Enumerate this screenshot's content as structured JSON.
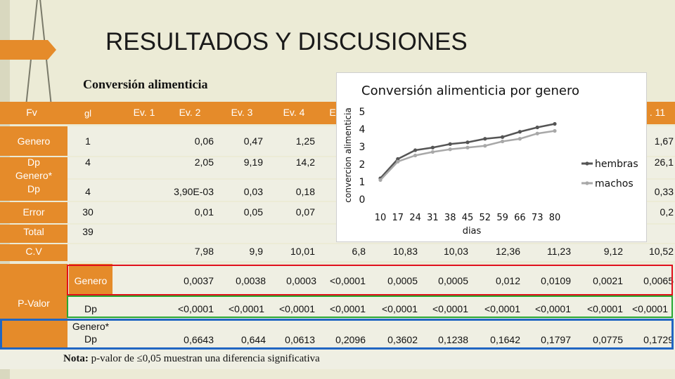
{
  "slide": {
    "title": "RESULTADOS Y DISCUSIONES",
    "subtitle": "Conversión alimenticia",
    "note_bold": "Nota:",
    "note_text": " p-valor de ≤0,05 muestran una diferencia significativa"
  },
  "table": {
    "headers": [
      "Fv",
      "gl",
      "Ev. 1",
      "Ev. 2",
      "Ev. 3",
      "Ev. 4",
      "E",
      ". 11"
    ],
    "rows": [
      {
        "fv": "Genero",
        "gl": "1",
        "ev2": "0,06",
        "ev3": "0,47",
        "ev4": "1,25",
        "ev11": "1,67"
      },
      {
        "fv": "Dp",
        "gl": "4",
        "ev2": "2,05",
        "ev3": "9,19",
        "ev4": "14,2",
        "ev11": "26,1"
      },
      {
        "fv": "Genero*\nDp",
        "gl": "4",
        "ev2": "3,90E-03",
        "ev3": "0,03",
        "ev4": "0,18",
        "ev11": "0,33"
      },
      {
        "fv": "Error",
        "gl": "30",
        "ev2": "0,01",
        "ev3": "0,05",
        "ev4": "0,07",
        "ev11": "0,2"
      },
      {
        "fv": "Total",
        "gl": "39"
      }
    ],
    "cv": {
      "label": "C.V",
      "values": [
        "7,98",
        "9,9",
        "10,01",
        "6,8",
        "10,83",
        "10,03",
        "12,36",
        "11,23",
        "9,12",
        "10,52"
      ]
    },
    "pvalor": {
      "label": "P-Valor",
      "genero": {
        "label": "Genero",
        "values": [
          "0,0037",
          "0,0038",
          "0,0003",
          "<0,0001",
          "0,0005",
          "0,0005",
          "0,012",
          "0,0109",
          "0,0021",
          "0,0065"
        ]
      },
      "dp": {
        "label": "Dp",
        "values": [
          "<0,0001",
          "<0,0001",
          "<0,0001",
          "<0,0001",
          "<0,0001",
          "<0,0001",
          "<0,0001",
          "<0,0001",
          "<0,0001",
          "<0,0001"
        ]
      },
      "genero_dp": {
        "label": "Genero*\nDp",
        "values": [
          "0,6643",
          "0,644",
          "0,0613",
          "0,2096",
          "0,3602",
          "0,1238",
          "0,1642",
          "0,1797",
          "0,0775",
          "0,1729"
        ]
      }
    }
  },
  "chart_data": {
    "type": "line",
    "title": "Conversión alimenticia por genero",
    "xlabel": "dias",
    "ylabel": "convercion alimenticia",
    "categories": [
      "10",
      "17",
      "24",
      "31",
      "38",
      "45",
      "52",
      "59",
      "66",
      "73",
      "80"
    ],
    "x_tick_labels": [
      "10",
      "17",
      "24",
      "31",
      "38",
      "45",
      "52",
      "59",
      "66",
      "73",
      "80"
    ],
    "y_ticks": [
      "0",
      "1",
      "2",
      "3",
      "4",
      "5"
    ],
    "ylim": [
      0,
      5
    ],
    "legend": "right",
    "series": [
      {
        "name": "hembras",
        "color": "#555555",
        "values": [
          1.2,
          2.3,
          2.8,
          2.95,
          3.15,
          3.25,
          3.45,
          3.55,
          3.85,
          4.1,
          4.3
        ]
      },
      {
        "name": "machos",
        "color": "#a8a8a8",
        "values": [
          1.1,
          2.15,
          2.5,
          2.7,
          2.85,
          2.95,
          3.05,
          3.3,
          3.45,
          3.75,
          3.9
        ]
      }
    ],
    "grid": false
  }
}
